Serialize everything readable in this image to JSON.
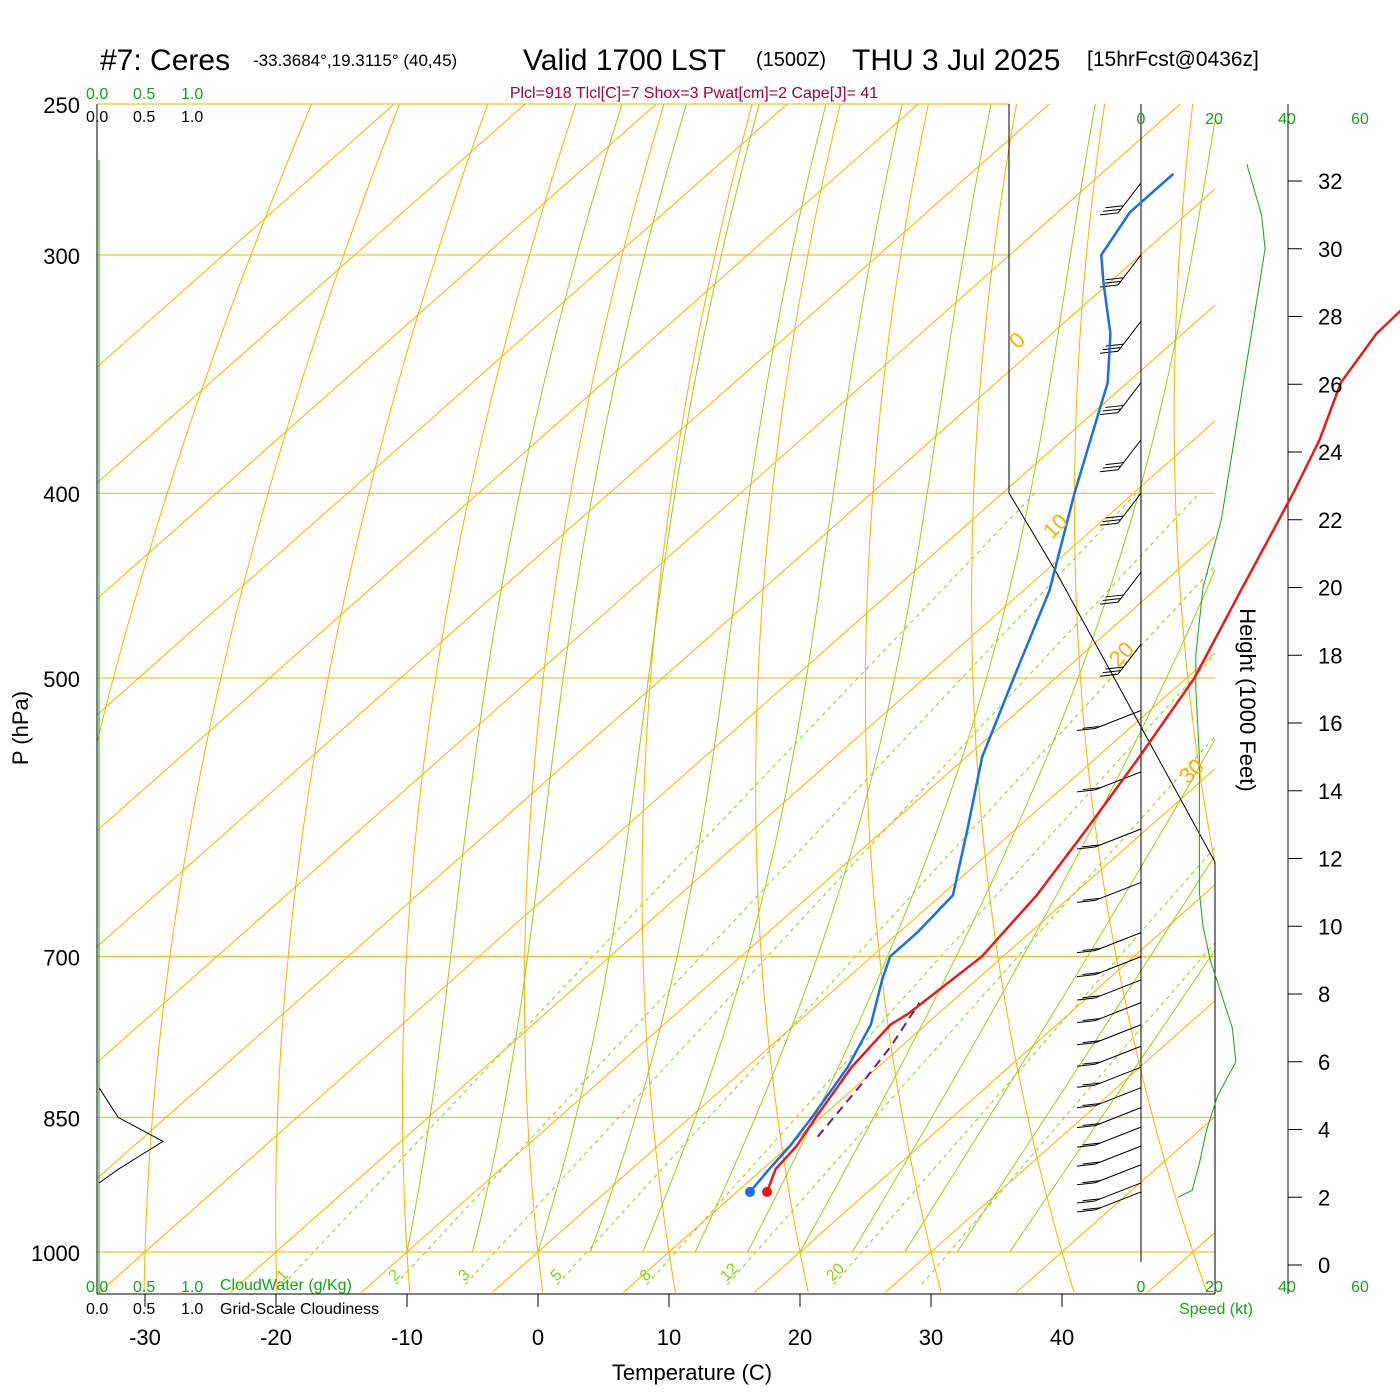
{
  "header": {
    "station": "#7: Ceres",
    "coords": "-33.3684°,19.3115° (40,45)",
    "valid": "Valid 1700 LST",
    "utc": "(1500Z)",
    "date": "THU 3 Jul 2025",
    "forecast": "[15hrFcst@0436z]",
    "indices": "Plcl=918 Tlcl[C]=7 Shox=3 Pwat[cm]=2 Cape[J]= 41"
  },
  "left_scales": {
    "cloudwater_ticks": [
      "0.0",
      "0.5",
      "1.0"
    ],
    "cloudiness_ticks": [
      "0.0",
      "0.5",
      "1.0"
    ],
    "cloudwater_label": "CloudWater (g/Kg)",
    "cloudiness_label": "Grid-Scale Cloudiness"
  },
  "wind_scale": {
    "ticks": [
      "0",
      "20",
      "40",
      "60"
    ],
    "label": "Speed (kt)"
  },
  "colors": {
    "temperature": "#e8191a",
    "dewpoint": "#1a6ee6",
    "isotherms_isobars": "#f5b400",
    "moist_adiabats": "#9acd1a",
    "mixing_ratio": "#8ad11a",
    "wind_speed": "#1aa01a",
    "parcel": "#7a1a7a",
    "info": "#a0003c"
  },
  "chart_data": {
    "type": "skew-t",
    "xlabel": "Temperature (C)",
    "ylabel": "P (hPa)",
    "y2label": "Height (1000 Feet)",
    "pressure_ticks": [
      250,
      300,
      400,
      500,
      700,
      850,
      1000
    ],
    "temperature_ticks": [
      -30,
      -20,
      -10,
      0,
      10,
      20,
      30,
      40
    ],
    "height_ticks": [
      0,
      2,
      4,
      6,
      8,
      10,
      12,
      14,
      16,
      18,
      20,
      22,
      24,
      26,
      28,
      30,
      32
    ],
    "isotherm_labels": [
      {
        "text": "10",
        "T": 10
      },
      {
        "text": "0",
        "T": 0
      },
      {
        "text": "-10",
        "T": -10
      },
      {
        "text": "-20",
        "T": -20
      },
      {
        "text": "-30",
        "T": -30
      }
    ],
    "dry_adiabat_labels": [
      "0",
      "10",
      "20",
      "30"
    ],
    "mixing_ratio_labels": [
      "1",
      "2",
      "3",
      "5",
      "8",
      "12",
      "20"
    ],
    "temperature_profile": [
      {
        "p": 930,
        "t": 12.3
      },
      {
        "p": 905,
        "t": 11.0
      },
      {
        "p": 880,
        "t": 10.6
      },
      {
        "p": 850,
        "t": 9.6
      },
      {
        "p": 800,
        "t": 8.0
      },
      {
        "p": 760,
        "t": 7.3
      },
      {
        "p": 750,
        "t": 7.7
      },
      {
        "p": 700,
        "t": 8.4
      },
      {
        "p": 650,
        "t": 7.3
      },
      {
        "p": 600,
        "t": 5.4
      },
      {
        "p": 550,
        "t": 3.2
      },
      {
        "p": 500,
        "t": 0.6
      },
      {
        "p": 450,
        "t": -3.4
      },
      {
        "p": 400,
        "t": -7.8
      },
      {
        "p": 375,
        "t": -10.4
      },
      {
        "p": 350,
        "t": -13.7
      },
      {
        "p": 330,
        "t": -15.2
      },
      {
        "p": 300,
        "t": -15.7
      },
      {
        "p": 285,
        "t": -16.5
      },
      {
        "p": 272,
        "t": -17.7
      }
    ],
    "dewpoint_profile": [
      {
        "p": 930,
        "t": 11.0
      },
      {
        "p": 905,
        "t": 10.5
      },
      {
        "p": 880,
        "t": 10.1
      },
      {
        "p": 850,
        "t": 9.3
      },
      {
        "p": 800,
        "t": 7.7
      },
      {
        "p": 760,
        "t": 5.8
      },
      {
        "p": 720,
        "t": 2.8
      },
      {
        "p": 700,
        "t": 1.4
      },
      {
        "p": 680,
        "t": 1.4
      },
      {
        "p": 650,
        "t": 0.9
      },
      {
        "p": 600,
        "t": -3.7
      },
      {
        "p": 550,
        "t": -8.8
      },
      {
        "p": 500,
        "t": -13.2
      },
      {
        "p": 450,
        "t": -18.0
      },
      {
        "p": 400,
        "t": -24.5
      },
      {
        "p": 350,
        "t": -31.5
      },
      {
        "p": 330,
        "t": -35.5
      },
      {
        "p": 310,
        "t": -40.5
      },
      {
        "p": 300,
        "t": -43.0
      },
      {
        "p": 285,
        "t": -44.5
      },
      {
        "p": 272,
        "t": -44.5
      }
    ],
    "parcel_profile": [
      {
        "p": 870,
        "t": 11.4
      },
      {
        "p": 820,
        "t": 10.3
      },
      {
        "p": 780,
        "t": 9.2
      },
      {
        "p": 740,
        "t": 7.6
      }
    ],
    "wind_speed_profile": [
      {
        "h": 2.0,
        "v": 10
      },
      {
        "h": 2.2,
        "v": 14
      },
      {
        "h": 3.0,
        "v": 16
      },
      {
        "h": 4.0,
        "v": 18
      },
      {
        "h": 5.0,
        "v": 21
      },
      {
        "h": 6.0,
        "v": 26
      },
      {
        "h": 7.0,
        "v": 25
      },
      {
        "h": 8.0,
        "v": 22
      },
      {
        "h": 9.0,
        "v": 19
      },
      {
        "h": 10.0,
        "v": 17
      },
      {
        "h": 11.0,
        "v": 16
      },
      {
        "h": 12.0,
        "v": 16
      },
      {
        "h": 13.0,
        "v": 16
      },
      {
        "h": 14.0,
        "v": 16
      },
      {
        "h": 15.0,
        "v": 16
      },
      {
        "h": 17.0,
        "v": 15
      },
      {
        "h": 18.0,
        "v": 15
      },
      {
        "h": 20.0,
        "v": 17
      },
      {
        "h": 22.0,
        "v": 22
      },
      {
        "h": 24.0,
        "v": 25
      },
      {
        "h": 26.0,
        "v": 28
      },
      {
        "h": 28.0,
        "v": 31
      },
      {
        "h": 30.0,
        "v": 34
      },
      {
        "h": 31.0,
        "v": 33
      },
      {
        "h": 32.5,
        "v": 29
      }
    ],
    "cloudwater_profile": [
      {
        "p": 820,
        "v": 0.0
      },
      {
        "p": 850,
        "v": 0.3
      },
      {
        "p": 875,
        "v": 1.0
      },
      {
        "p": 905,
        "v": 0.3
      },
      {
        "p": 920,
        "v": 0.0
      }
    ],
    "wind_barbs_pressures": [
      275,
      300,
      325,
      350,
      375,
      400,
      440,
      480,
      520,
      560,
      600,
      640,
      680,
      700,
      720,
      740,
      760,
      780,
      800,
      820,
      840,
      860,
      880,
      900,
      920,
      930
    ],
    "surface_temperature": 12.3,
    "surface_dewpoint": 11.0
  }
}
